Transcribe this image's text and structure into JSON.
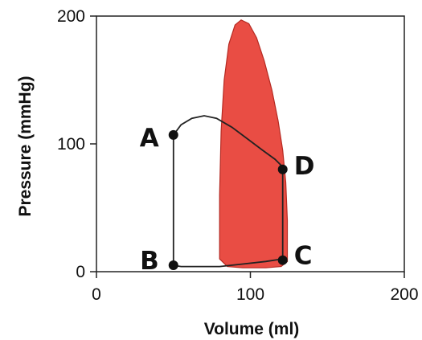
{
  "chart_data": {
    "type": "line",
    "title": "",
    "xlabel": "Volume (ml)",
    "ylabel": "Pressure (mmHg)",
    "xlim": [
      0,
      200
    ],
    "ylim": [
      0,
      200
    ],
    "x_ticks": [
      "0",
      "100",
      "200"
    ],
    "y_ticks": [
      "0",
      "100",
      "200"
    ],
    "grid": false,
    "series": [
      {
        "role": "shaded-loop",
        "color": "#e8433a",
        "x": [
          80,
          80,
          81,
          83,
          86,
          90,
          94,
          99,
          104,
          109,
          114,
          118,
          121,
          123,
          124,
          124,
          120,
          110,
          95,
          85,
          80
        ],
        "y": [
          10,
          60,
          110,
          150,
          178,
          193,
          197,
          194,
          183,
          165,
          142,
          118,
          95,
          70,
          40,
          8,
          4,
          3,
          3,
          4,
          10
        ]
      },
      {
        "role": "outline-loop",
        "color": "#222222",
        "x": [
          50,
          50,
          55,
          62,
          70,
          78,
          88,
          98,
          108,
          116,
          121,
          121,
          121,
          110,
          95,
          80,
          65,
          55,
          50
        ],
        "y": [
          5,
          107,
          115,
          120,
          122,
          120,
          113,
          104,
          95,
          88,
          82,
          40,
          10,
          8,
          6,
          4,
          4,
          4,
          5
        ]
      }
    ],
    "points": [
      {
        "label": "A",
        "x": 50,
        "y": 107
      },
      {
        "label": "B",
        "x": 50,
        "y": 5
      },
      {
        "label": "C",
        "x": 121,
        "y": 9
      },
      {
        "label": "D",
        "x": 121,
        "y": 80
      }
    ]
  }
}
